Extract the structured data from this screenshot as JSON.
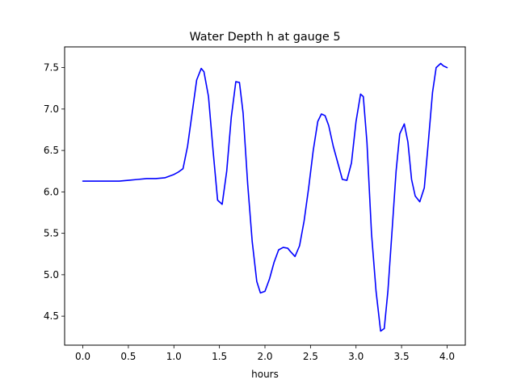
{
  "chart_data": {
    "type": "line",
    "title": "Water Depth h at gauge 5",
    "xlabel": "hours",
    "ylabel": "",
    "xlim": [
      -0.2,
      4.2
    ],
    "ylim": [
      4.15,
      7.75
    ],
    "xticks": [
      0.0,
      0.5,
      1.0,
      1.5,
      2.0,
      2.5,
      3.0,
      3.5,
      4.0
    ],
    "xtick_labels": [
      "0.0",
      "0.5",
      "1.0",
      "1.5",
      "2.0",
      "2.5",
      "3.0",
      "3.5",
      "4.0"
    ],
    "yticks": [
      4.5,
      5.0,
      5.5,
      6.0,
      6.5,
      7.0,
      7.5
    ],
    "ytick_labels": [
      "4.5",
      "5.0",
      "5.5",
      "6.0",
      "6.5",
      "7.0",
      "7.5"
    ],
    "grid": false,
    "legend": false,
    "series": [
      {
        "color": "#0000ff",
        "x": [
          0.0,
          0.2,
          0.4,
          0.5,
          0.6,
          0.7,
          0.8,
          0.9,
          1.0,
          1.05,
          1.1,
          1.15,
          1.2,
          1.25,
          1.3,
          1.33,
          1.38,
          1.43,
          1.48,
          1.53,
          1.58,
          1.63,
          1.68,
          1.72,
          1.76,
          1.81,
          1.86,
          1.91,
          1.95,
          2.0,
          2.05,
          2.1,
          2.15,
          2.2,
          2.25,
          2.28,
          2.33,
          2.38,
          2.43,
          2.48,
          2.53,
          2.58,
          2.62,
          2.66,
          2.7,
          2.75,
          2.8,
          2.85,
          2.9,
          2.95,
          3.0,
          3.05,
          3.08,
          3.12,
          3.17,
          3.22,
          3.27,
          3.31,
          3.35,
          3.4,
          3.44,
          3.48,
          3.53,
          3.57,
          3.61,
          3.65,
          3.7,
          3.75,
          3.79,
          3.84,
          3.88,
          3.93,
          3.96,
          4.0
        ],
        "y": [
          6.13,
          6.13,
          6.13,
          6.14,
          6.15,
          6.16,
          6.16,
          6.17,
          6.21,
          6.24,
          6.28,
          6.55,
          6.95,
          7.35,
          7.49,
          7.45,
          7.15,
          6.5,
          5.9,
          5.85,
          6.25,
          6.9,
          7.33,
          7.32,
          6.95,
          6.1,
          5.4,
          4.92,
          4.78,
          4.8,
          4.95,
          5.15,
          5.3,
          5.33,
          5.32,
          5.28,
          5.22,
          5.35,
          5.65,
          6.05,
          6.5,
          6.85,
          6.94,
          6.92,
          6.8,
          6.55,
          6.35,
          6.15,
          6.14,
          6.35,
          6.85,
          7.18,
          7.15,
          6.6,
          5.5,
          4.8,
          4.32,
          4.35,
          4.8,
          5.6,
          6.25,
          6.7,
          6.82,
          6.6,
          6.15,
          5.95,
          5.88,
          6.05,
          6.55,
          7.2,
          7.5,
          7.55,
          7.52,
          7.5
        ]
      }
    ]
  }
}
